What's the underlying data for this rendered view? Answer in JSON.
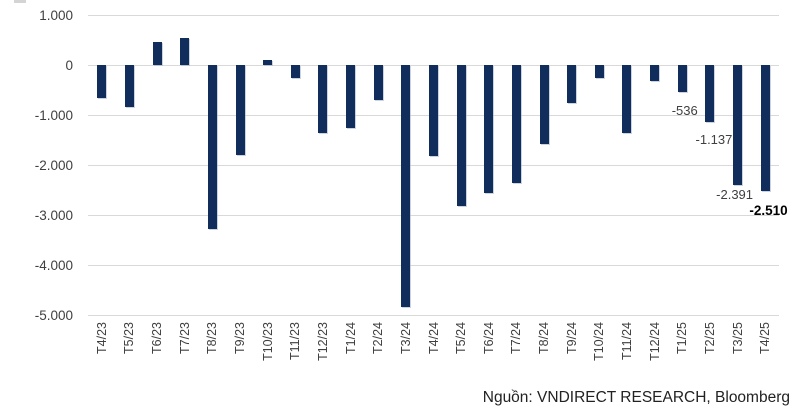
{
  "chart_data": {
    "type": "bar",
    "title": "",
    "xlabel": "",
    "ylabel": "",
    "categories": [
      "T4/23",
      "T5/23",
      "T6/23",
      "T7/23",
      "T8/23",
      "T9/23",
      "T10/23",
      "T11/23",
      "T12/23",
      "T1/24",
      "T2/24",
      "T3/24",
      "T4/24",
      "T5/24",
      "T6/24",
      "T7/24",
      "T8/24",
      "T9/24",
      "T10/24",
      "T11/24",
      "T12/24",
      "T1/25",
      "T2/25",
      "T3/25",
      "T4/25"
    ],
    "values": [
      -650,
      -830,
      470,
      540,
      -3270,
      -1790,
      110,
      -250,
      -1350,
      -1250,
      -690,
      -4840,
      -1810,
      -2820,
      -2550,
      -2360,
      -1580,
      -750,
      -250,
      -1350,
      -320,
      -536,
      -1137,
      -2391,
      -2510
    ],
    "ylim": [
      -5000,
      1000
    ],
    "y_ticks": [
      1000,
      0,
      -1000,
      -2000,
      -3000,
      -4000,
      -5000
    ],
    "y_tick_labels": [
      "1.000",
      "0",
      "-1.000",
      "-2.000",
      "-3.000",
      "-4.000",
      "-5.000"
    ],
    "grid": true,
    "legend": "none",
    "data_labels": [
      {
        "category": "T1/25",
        "text": "-536",
        "bold": false
      },
      {
        "category": "T2/25",
        "text": "-1.137",
        "bold": false
      },
      {
        "category": "T3/25",
        "text": "-2.391",
        "bold": false
      },
      {
        "category": "T4/25",
        "text": "-2.510",
        "bold": true
      }
    ]
  },
  "source": {
    "text": "Nguồn: VNDIRECT RESEARCH, Bloomberg"
  },
  "colors": {
    "bar": "#102d5c",
    "gridline": "#d9d9d9",
    "tick_text": "#404040",
    "data_label_text": "#404040",
    "data_label_bold_text": "#000000",
    "background": "#ffffff"
  }
}
